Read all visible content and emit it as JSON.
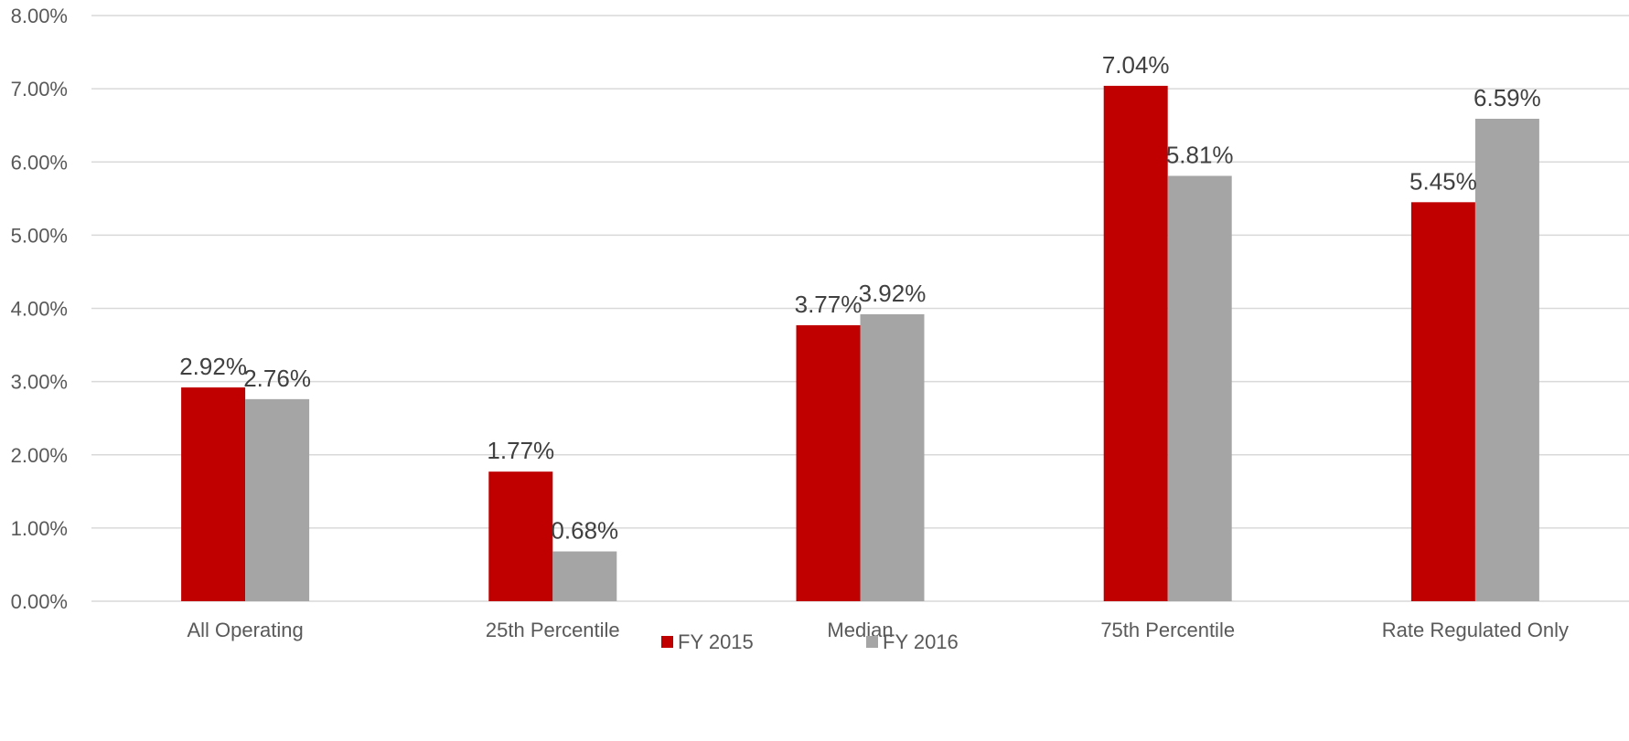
{
  "chart_data": {
    "type": "bar",
    "title": "",
    "xlabel": "",
    "ylabel": "",
    "categories": [
      "All Operating",
      "25th Percentile",
      "Median",
      "75th Percentile",
      "Rate Regulated Only"
    ],
    "series": [
      {
        "name": "FY 2015",
        "color": "#c00000",
        "values": [
          2.92,
          1.77,
          3.77,
          7.04,
          5.45
        ],
        "labels": [
          "2.92%",
          "1.77%",
          "3.77%",
          "7.04%",
          "5.45%"
        ]
      },
      {
        "name": "FY 2016",
        "color": "#a5a5a5",
        "values": [
          2.76,
          0.68,
          3.92,
          5.81,
          6.59
        ],
        "labels": [
          "2.76%",
          "0.68%",
          "3.92%",
          "5.81%",
          "6.59%"
        ]
      }
    ],
    "ylim": [
      0,
      8
    ],
    "yticks": [
      0,
      1,
      2,
      3,
      4,
      5,
      6,
      7,
      8
    ],
    "ytick_labels": [
      "0.00%",
      "1.00%",
      "2.00%",
      "3.00%",
      "4.00%",
      "5.00%",
      "6.00%",
      "7.00%",
      "8.00%"
    ],
    "grid": true,
    "legend": {
      "placement": "bottom-center",
      "entries": [
        "FY 2015",
        "FY 2016"
      ]
    }
  }
}
